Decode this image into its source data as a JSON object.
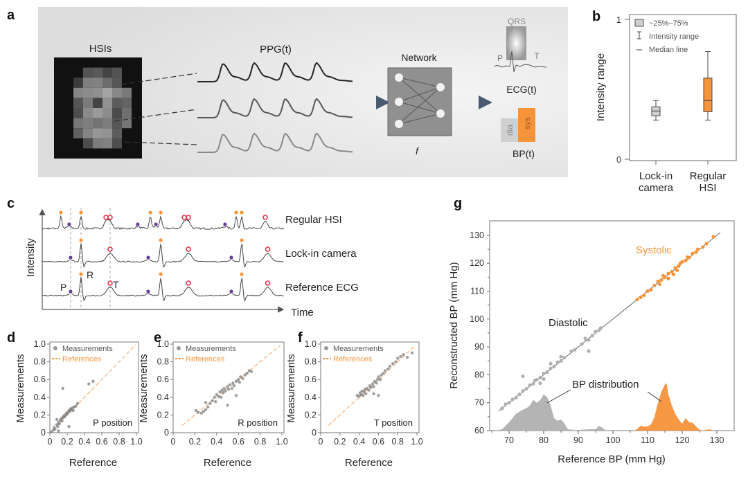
{
  "panels": {
    "a": {
      "label": "a",
      "hsis": "HSIs",
      "ppg": "PPG(t)",
      "network": "Network",
      "f": "f",
      "qrs": "QRS",
      "p": "P",
      "t": "T",
      "ecg": "ECG(t)",
      "dia": "dia",
      "sys": "sys",
      "bp": "BP(t)"
    },
    "b": {
      "label": "b"
    },
    "c": {
      "label": "c"
    },
    "d": {
      "label": "d"
    },
    "e": {
      "label": "e"
    },
    "f": {
      "label": "f"
    },
    "g": {
      "label": "g"
    }
  },
  "colors": {
    "orange": "#f7943a",
    "gray": "#a8a8a8",
    "purple": "#6a3d9a",
    "red": "#e8344a",
    "panel_bg": "#e2e2e2"
  },
  "chart_data": [
    {
      "panel": "b",
      "type": "box",
      "ylabel": "Intensity range",
      "ylim": [
        0,
        1
      ],
      "yticks": [
        "0",
        "1"
      ],
      "categories": [
        "Lock-in\ncamera",
        "Regular\nHSI"
      ],
      "category_lines": [
        [
          "Lock-in",
          "camera"
        ],
        [
          "Regular",
          "HSI"
        ]
      ],
      "legend": [
        "~25%–75%",
        "Intensity range",
        "Median line"
      ],
      "boxes": [
        {
          "min": 0.28,
          "q1": 0.31,
          "median": 0.345,
          "q3": 0.375,
          "max": 0.42,
          "color": "#d0d0d0"
        },
        {
          "min": 0.28,
          "q1": 0.34,
          "median": 0.42,
          "q3": 0.58,
          "max": 0.77,
          "color": "#f7943a"
        }
      ]
    },
    {
      "panel": "c",
      "type": "line",
      "ylabel": "Intensity",
      "xlabel": "Time",
      "annotations": {
        "P": "P",
        "R": "R",
        "T": "T"
      },
      "series": [
        {
          "name": "Regular HSI",
          "R": [
            7.7,
            16,
            44.6,
            48.9,
            80,
            82.3
          ],
          "P": [
            11.1,
            39.4,
            46.9,
            75.4
          ],
          "T": [
            26.3,
            28,
            58.6,
            60.3,
            92
          ]
        },
        {
          "name": "Lock-in camera",
          "R": [
            16,
            48.9,
            82.3
          ],
          "P": [
            11.7,
            43.7,
            78
          ],
          "T": [
            28,
            60.3,
            93
          ]
        },
        {
          "name": "Reference ECG",
          "R": [
            16,
            48.9,
            82.3
          ],
          "P": [
            11.7,
            43.7,
            78
          ],
          "T": [
            28,
            60.3,
            93
          ]
        }
      ],
      "reference_lines": [
        11.7,
        16,
        28
      ]
    },
    {
      "panel": "d",
      "type": "scatter",
      "xlabel": "Reference",
      "ylabel": "Measurements",
      "xlim": [
        0,
        1
      ],
      "ylim": [
        0,
        1
      ],
      "xticks": [
        "0",
        "0.2",
        "0.4",
        "0.6",
        "0.8",
        "1.0"
      ],
      "yticks": [
        "0",
        "0.2",
        "0.4",
        "0.6",
        "0.8",
        "1.0"
      ],
      "legend": [
        "Measurements",
        "References"
      ],
      "annotation": "P position",
      "points": [
        [
          0.02,
          0.01
        ],
        [
          0.04,
          0.03
        ],
        [
          0.05,
          0.06
        ],
        [
          0.06,
          0.04
        ],
        [
          0.08,
          0.09
        ],
        [
          0.09,
          0.07
        ],
        [
          0.1,
          0.12
        ],
        [
          0.11,
          0.1
        ],
        [
          0.12,
          0.14
        ],
        [
          0.13,
          0.16
        ],
        [
          0.14,
          0.13
        ],
        [
          0.15,
          0.17
        ],
        [
          0.16,
          0.19
        ],
        [
          0.17,
          0.18
        ],
        [
          0.18,
          0.2
        ],
        [
          0.19,
          0.22
        ],
        [
          0.2,
          0.21
        ],
        [
          0.21,
          0.23
        ],
        [
          0.22,
          0.25
        ],
        [
          0.23,
          0.24
        ],
        [
          0.24,
          0.27
        ],
        [
          0.25,
          0.26
        ],
        [
          0.26,
          0.28
        ],
        [
          0.27,
          0.25
        ],
        [
          0.28,
          0.29
        ],
        [
          0.3,
          0.3
        ],
        [
          0.32,
          0.33
        ],
        [
          0.15,
          0.5
        ],
        [
          0.45,
          0.55
        ],
        [
          0.5,
          0.58
        ],
        [
          0.22,
          0.07
        ],
        [
          0.08,
          0.15
        ],
        [
          0.1,
          0.02
        ]
      ]
    },
    {
      "panel": "e",
      "type": "scatter",
      "xlabel": "Reference",
      "ylabel": "Measurements",
      "xlim": [
        0,
        1
      ],
      "ylim": [
        0,
        1
      ],
      "xticks": [
        "0",
        "0.2",
        "0.4",
        "0.6",
        "0.8",
        "1.0"
      ],
      "yticks": [
        "0",
        "0.2",
        "0.4",
        "0.6",
        "0.8",
        "1.0"
      ],
      "legend": [
        "Measurements",
        "References"
      ],
      "annotation": "R position",
      "points": [
        [
          0.21,
          0.25
        ],
        [
          0.23,
          0.23
        ],
        [
          0.26,
          0.22
        ],
        [
          0.28,
          0.24
        ],
        [
          0.3,
          0.26
        ],
        [
          0.32,
          0.29
        ],
        [
          0.34,
          0.33
        ],
        [
          0.36,
          0.36
        ],
        [
          0.38,
          0.4
        ],
        [
          0.39,
          0.35
        ],
        [
          0.4,
          0.43
        ],
        [
          0.42,
          0.41
        ],
        [
          0.43,
          0.46
        ],
        [
          0.44,
          0.4
        ],
        [
          0.45,
          0.48
        ],
        [
          0.46,
          0.45
        ],
        [
          0.47,
          0.5
        ],
        [
          0.48,
          0.47
        ],
        [
          0.5,
          0.52
        ],
        [
          0.51,
          0.49
        ],
        [
          0.52,
          0.54
        ],
        [
          0.54,
          0.5
        ],
        [
          0.55,
          0.56
        ],
        [
          0.56,
          0.53
        ],
        [
          0.58,
          0.58
        ],
        [
          0.6,
          0.6
        ],
        [
          0.61,
          0.57
        ],
        [
          0.62,
          0.63
        ],
        [
          0.64,
          0.61
        ],
        [
          0.66,
          0.65
        ],
        [
          0.68,
          0.67
        ],
        [
          0.7,
          0.7
        ],
        [
          0.72,
          0.69
        ],
        [
          0.5,
          0.31
        ],
        [
          0.58,
          0.42
        ],
        [
          0.3,
          0.34
        ]
      ]
    },
    {
      "panel": "f",
      "type": "scatter",
      "xlabel": "Reference",
      "ylabel": "Measurements",
      "xlim": [
        0,
        1
      ],
      "ylim": [
        0,
        1
      ],
      "xticks": [
        "0",
        "0.2",
        "0.4",
        "0.6",
        "0.8",
        "1.0"
      ],
      "yticks": [
        "0",
        "0.2",
        "0.4",
        "0.6",
        "0.8",
        "1.0"
      ],
      "legend": [
        "Measurements",
        "References"
      ],
      "annotation": "T position",
      "points": [
        [
          0.38,
          0.42
        ],
        [
          0.4,
          0.41
        ],
        [
          0.41,
          0.45
        ],
        [
          0.42,
          0.43
        ],
        [
          0.43,
          0.47
        ],
        [
          0.44,
          0.42
        ],
        [
          0.45,
          0.46
        ],
        [
          0.46,
          0.49
        ],
        [
          0.47,
          0.44
        ],
        [
          0.48,
          0.5
        ],
        [
          0.5,
          0.48
        ],
        [
          0.51,
          0.53
        ],
        [
          0.52,
          0.51
        ],
        [
          0.54,
          0.55
        ],
        [
          0.55,
          0.52
        ],
        [
          0.56,
          0.58
        ],
        [
          0.58,
          0.56
        ],
        [
          0.59,
          0.6
        ],
        [
          0.6,
          0.63
        ],
        [
          0.62,
          0.6
        ],
        [
          0.63,
          0.65
        ],
        [
          0.65,
          0.67
        ],
        [
          0.67,
          0.7
        ],
        [
          0.7,
          0.72
        ],
        [
          0.72,
          0.75
        ],
        [
          0.75,
          0.78
        ],
        [
          0.78,
          0.8
        ],
        [
          0.8,
          0.84
        ],
        [
          0.83,
          0.86
        ],
        [
          0.86,
          0.88
        ],
        [
          0.9,
          0.85
        ],
        [
          0.95,
          0.9
        ],
        [
          0.55,
          0.44
        ],
        [
          0.6,
          0.42
        ]
      ]
    },
    {
      "panel": "g",
      "type": "scatter",
      "xlabel": "Reference BP (mm Hg)",
      "ylabel": "Reconstructed BP (mm Hg)",
      "xlim": [
        64.5,
        135
      ],
      "ylim": [
        60,
        138
      ],
      "xticks": [
        "70",
        "80",
        "90",
        "100",
        "110",
        "120",
        "130"
      ],
      "yticks": [
        "60",
        "70",
        "80",
        "90",
        "100",
        "110",
        "120",
        "130"
      ],
      "annotations": [
        "Systolic",
        "Diastolic",
        "BP distribution"
      ],
      "identity_line": [
        67,
        131
      ],
      "series": [
        {
          "name": "Diastolic",
          "color": "#b0b0b0",
          "points": [
            [
              68,
              68
            ],
            [
              69,
              69.5
            ],
            [
              70,
              70
            ],
            [
              71,
              71.2
            ],
            [
              72,
              71.8
            ],
            [
              73,
              73
            ],
            [
              74,
              74.2
            ],
            [
              74,
              79.5
            ],
            [
              75,
              75
            ],
            [
              76,
              76.3
            ],
            [
              77,
              76.8
            ],
            [
              77.5,
              78
            ],
            [
              78,
              78.2
            ],
            [
              79,
              79
            ],
            [
              79,
              77
            ],
            [
              80,
              80.5
            ],
            [
              80,
              78.5
            ],
            [
              81,
              81
            ],
            [
              82,
              82.3
            ],
            [
              82,
              84
            ],
            [
              83,
              83
            ],
            [
              84,
              84.5
            ],
            [
              85,
              85
            ],
            [
              85,
              86.5
            ],
            [
              86,
              86.2
            ],
            [
              88,
              88.5
            ],
            [
              89,
              89
            ],
            [
              91,
              91
            ],
            [
              92,
              93
            ],
            [
              93,
              92.5
            ],
            [
              93,
              88.5
            ],
            [
              94,
              94
            ],
            [
              95,
              95.5
            ],
            [
              96,
              96
            ],
            [
              96.5,
              96.8
            ]
          ]
        },
        {
          "name": "Systolic",
          "color": "#f7943a",
          "points": [
            [
              107,
              107
            ],
            [
              108,
              107.8
            ],
            [
              109,
              108.5
            ],
            [
              110,
              110
            ],
            [
              111,
              110.5
            ],
            [
              112,
              112
            ],
            [
              113,
              113.5
            ],
            [
              113.5,
              112.5
            ],
            [
              114,
              114
            ],
            [
              114.5,
              115.5
            ],
            [
              115,
              115
            ],
            [
              116,
              116.3
            ],
            [
              116,
              114.5
            ],
            [
              117,
              117
            ],
            [
              117.5,
              116
            ],
            [
              118,
              118.3
            ],
            [
              118.5,
              117.5
            ],
            [
              119,
              119
            ],
            [
              119.5,
              120
            ],
            [
              120,
              120.5
            ],
            [
              121,
              121
            ],
            [
              121.5,
              122.2
            ],
            [
              122,
              122
            ],
            [
              123,
              123.5
            ],
            [
              124,
              124
            ],
            [
              124.5,
              125
            ],
            [
              126,
              125.8
            ],
            [
              127,
              127
            ],
            [
              129,
              129.5
            ]
          ]
        }
      ],
      "distributions": [
        {
          "name": "Diastolic",
          "color": "#b0b0b0",
          "x": [
            66,
            68,
            70,
            72,
            74,
            75,
            76,
            77,
            78,
            79,
            80,
            81,
            82,
            83,
            84,
            85,
            86,
            87,
            89,
            91,
            93,
            95,
            96,
            97,
            98
          ],
          "density": [
            0,
            0.5,
            3,
            6,
            7.5,
            8,
            9,
            11,
            10,
            11,
            13,
            12,
            9,
            4.5,
            3.5,
            4,
            2.5,
            0.5,
            0.2,
            0.3,
            0.5,
            0.5,
            1.7,
            1,
            0
          ]
        },
        {
          "name": "Systolic",
          "color": "#f7943a",
          "x": [
            106,
            107,
            108,
            109,
            110,
            111,
            112,
            113,
            114,
            115,
            115.5,
            116,
            117,
            118,
            119,
            120,
            121,
            122,
            123,
            124,
            125,
            126,
            128,
            129
          ],
          "density": [
            0,
            0.5,
            1.8,
            1.4,
            1.5,
            2.2,
            5,
            10,
            14,
            16.5,
            17,
            13,
            9,
            6,
            4,
            2.5,
            4.5,
            3,
            2.8,
            1.5,
            0.3,
            0.1,
            0.5,
            0
          ]
        }
      ]
    }
  ]
}
